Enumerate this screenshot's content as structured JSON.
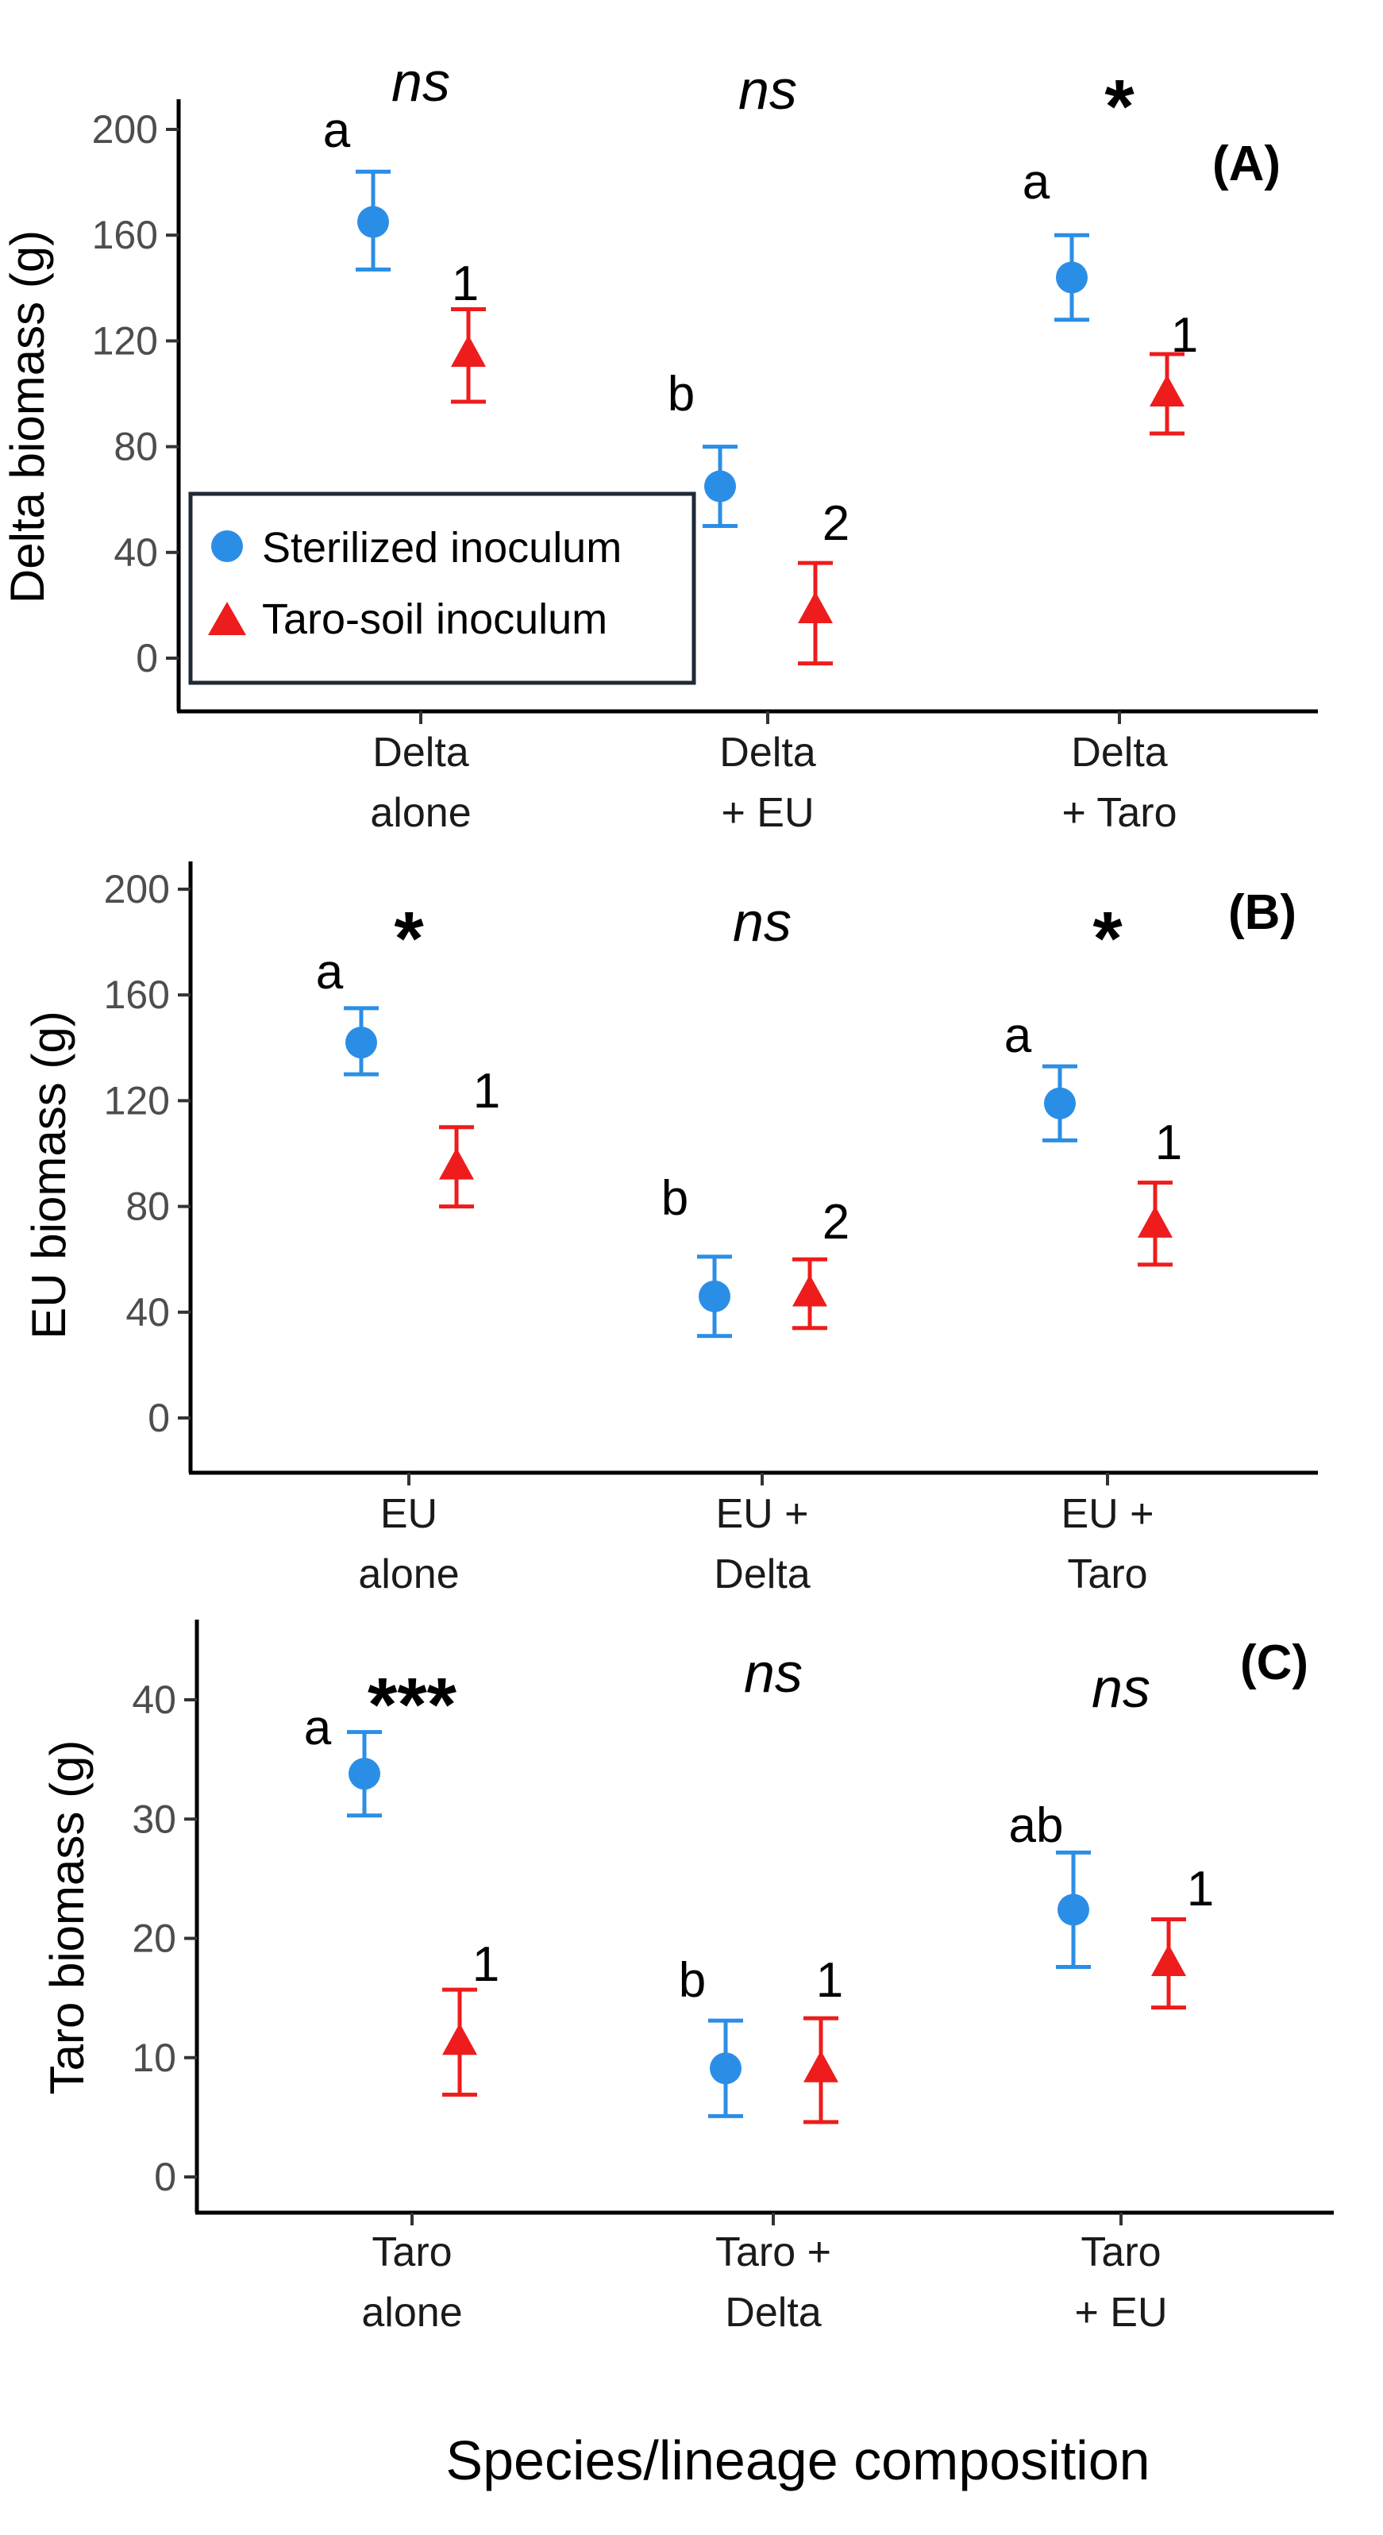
{
  "xlabel": "Species/lineage composition",
  "colors": {
    "sterilized": "#2b8ee6",
    "taro_soil": "#ee1c1c"
  },
  "legend": {
    "items": [
      {
        "label": "Sterilized inoculum",
        "marker": "circle"
      },
      {
        "label": "Taro-soil inoculum",
        "marker": "triangle"
      }
    ]
  },
  "chart_data": [
    {
      "type": "scatter",
      "panel_label": "(A)",
      "ylabel": "Delta biomass (g)",
      "ylim": [
        0,
        200
      ],
      "yticks": [
        0,
        40,
        80,
        120,
        160,
        200
      ],
      "categories": [
        [
          "Delta",
          "alone"
        ],
        [
          "Delta",
          "+ EU"
        ],
        [
          "Delta",
          "+ Taro"
        ]
      ],
      "significance": [
        "ns",
        "ns",
        "*"
      ],
      "series": [
        {
          "name": "Sterilized inoculum",
          "values": [
            165,
            65,
            144
          ],
          "ci_low": [
            147,
            50,
            128
          ],
          "ci_high": [
            184,
            80,
            160
          ],
          "letters": [
            "a",
            "b",
            "a"
          ]
        },
        {
          "name": "Taro-soil inoculum",
          "values": [
            115,
            18,
            100
          ],
          "ci_low": [
            97,
            -2,
            85
          ],
          "ci_high": [
            132,
            36,
            115
          ],
          "letters": [
            "1",
            "2",
            "1"
          ]
        }
      ]
    },
    {
      "type": "scatter",
      "panel_label": "(B)",
      "ylabel": "EU biomass (g)",
      "ylim": [
        0,
        200
      ],
      "yticks": [
        0,
        40,
        80,
        120,
        160,
        200
      ],
      "categories": [
        [
          "EU",
          "alone"
        ],
        [
          "EU +",
          "Delta"
        ],
        [
          "EU +",
          "Taro"
        ]
      ],
      "significance": [
        "*",
        "ns",
        "*"
      ],
      "series": [
        {
          "name": "Sterilized inoculum",
          "values": [
            142,
            46,
            119
          ],
          "ci_low": [
            130,
            31,
            105
          ],
          "ci_high": [
            155,
            61,
            133
          ],
          "letters": [
            "a",
            "b",
            "a"
          ]
        },
        {
          "name": "Taro-soil inoculum",
          "values": [
            95,
            47,
            73
          ],
          "ci_low": [
            80,
            34,
            58
          ],
          "ci_high": [
            110,
            60,
            89
          ],
          "letters": [
            "1",
            "2",
            "1"
          ]
        }
      ]
    },
    {
      "type": "scatter",
      "panel_label": "(C)",
      "ylabel": "Taro biomass (g)",
      "ylim": [
        0,
        45
      ],
      "yticks": [
        0,
        10,
        20,
        30,
        40
      ],
      "categories": [
        [
          "Taro",
          "alone"
        ],
        [
          "Taro +",
          "Delta"
        ],
        [
          "Taro",
          "+ EU"
        ]
      ],
      "significance": [
        "***",
        "ns",
        "ns"
      ],
      "series": [
        {
          "name": "Sterilized inoculum",
          "values": [
            33.8,
            9.1,
            22.4
          ],
          "ci_low": [
            30.3,
            5.1,
            17.6
          ],
          "ci_high": [
            37.3,
            13.1,
            27.2
          ],
          "letters": [
            "a",
            "b",
            "ab"
          ]
        },
        {
          "name": "Taro-soil inoculum",
          "values": [
            11.3,
            9.0,
            17.9
          ],
          "ci_low": [
            6.9,
            4.6,
            14.2
          ],
          "ci_high": [
            15.7,
            13.3,
            21.6
          ],
          "letters": [
            "1",
            "1",
            "1"
          ]
        }
      ]
    }
  ]
}
